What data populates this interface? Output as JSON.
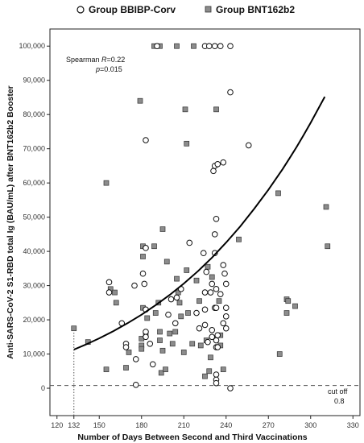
{
  "chart_data": {
    "type": "scatter",
    "xlabel": "Number of Days Between Second and Third Vaccinations",
    "ylabel": "Anti-SARS-CoV-2 S1-RBD total Ig (BAU/mL) after BNT162b2 Booster",
    "xlim": [
      115,
      335
    ],
    "ylim": [
      -8000,
      105000
    ],
    "x_ticks": [
      120,
      132,
      150,
      180,
      210,
      240,
      270,
      300,
      330
    ],
    "x_tick_labels": [
      "120",
      "132",
      "150",
      "180",
      "210",
      "240",
      "270",
      "300",
      "330"
    ],
    "y_ticks": [
      0,
      10000,
      20000,
      30000,
      40000,
      50000,
      60000,
      70000,
      80000,
      90000,
      100000
    ],
    "y_tick_labels": [
      "0",
      "10,000",
      "20,000",
      "30,000",
      "40,000",
      "50,000",
      "60,000",
      "70,000",
      "80,000",
      "90,000",
      "100,000"
    ],
    "legend": {
      "placement": "top"
    },
    "series": [
      {
        "name": "Group BBIBP-Corv",
        "marker": "open-circle",
        "color": "#111111",
        "points": [
          [
            157,
            31000
          ],
          [
            157,
            28000
          ],
          [
            166,
            19000
          ],
          [
            169,
            13000
          ],
          [
            169,
            12000
          ],
          [
            175,
            30000
          ],
          [
            176,
            8500
          ],
          [
            176,
            1000
          ],
          [
            181,
            33500
          ],
          [
            182,
            30500
          ],
          [
            183,
            72500
          ],
          [
            183,
            41000
          ],
          [
            183,
            23000
          ],
          [
            183,
            16500
          ],
          [
            183,
            15000
          ],
          [
            186,
            13000
          ],
          [
            188,
            7000
          ],
          [
            191,
            100000
          ],
          [
            199,
            21500
          ],
          [
            201,
            26000
          ],
          [
            204,
            19000
          ],
          [
            205,
            26500
          ],
          [
            208,
            29000
          ],
          [
            214,
            42500
          ],
          [
            219,
            22000
          ],
          [
            221,
            17500
          ],
          [
            224,
            39500
          ],
          [
            225,
            100000
          ],
          [
            225,
            28000
          ],
          [
            225,
            23000
          ],
          [
            225,
            18500
          ],
          [
            226,
            34000
          ],
          [
            227,
            13500
          ],
          [
            228,
            100000
          ],
          [
            229,
            28000
          ],
          [
            230,
            30500
          ],
          [
            230,
            17000
          ],
          [
            230,
            15000
          ],
          [
            231,
            63500
          ],
          [
            232,
            65000
          ],
          [
            232,
            100000
          ],
          [
            232,
            45000
          ],
          [
            232,
            39500
          ],
          [
            232,
            23500
          ],
          [
            233,
            49500
          ],
          [
            233,
            29000
          ],
          [
            233,
            23500
          ],
          [
            233,
            14000
          ],
          [
            233,
            12000
          ],
          [
            233,
            4000
          ],
          [
            233,
            2500
          ],
          [
            233,
            1500
          ],
          [
            234,
            65500
          ],
          [
            234,
            15500
          ],
          [
            234,
            12000
          ],
          [
            236,
            100000
          ],
          [
            236,
            27500
          ],
          [
            238,
            66000
          ],
          [
            238,
            36000
          ],
          [
            238,
            19000
          ],
          [
            239,
            33500
          ],
          [
            240,
            30500
          ],
          [
            240,
            23500
          ],
          [
            240,
            21000
          ],
          [
            240,
            17500
          ],
          [
            243,
            86500
          ],
          [
            243,
            100000
          ],
          [
            243,
            0
          ],
          [
            256,
            71000
          ]
        ]
      },
      {
        "name": "Group BNT162b2",
        "marker": "filled-square",
        "color": "#8c8c8c",
        "points": [
          [
            132,
            17500
          ],
          [
            142,
            13500
          ],
          [
            155,
            5500
          ],
          [
            155,
            60000
          ],
          [
            158,
            29000
          ],
          [
            161,
            28000
          ],
          [
            162,
            25000
          ],
          [
            169,
            6000
          ],
          [
            171,
            10500
          ],
          [
            179,
            84000
          ],
          [
            180,
            12500
          ],
          [
            180,
            14500
          ],
          [
            180,
            11500
          ],
          [
            181,
            23500
          ],
          [
            181,
            41500
          ],
          [
            181,
            38500
          ],
          [
            183,
            15500
          ],
          [
            184,
            20500
          ],
          [
            189,
            100000
          ],
          [
            189,
            41500
          ],
          [
            190,
            22000
          ],
          [
            192,
            25000
          ],
          [
            193,
            100000
          ],
          [
            193,
            16500
          ],
          [
            193,
            14000
          ],
          [
            194,
            4500
          ],
          [
            195,
            46500
          ],
          [
            195,
            11000
          ],
          [
            197,
            5500
          ],
          [
            198,
            37000
          ],
          [
            200,
            16000
          ],
          [
            202,
            13000
          ],
          [
            204,
            16500
          ],
          [
            205,
            100000
          ],
          [
            205,
            32000
          ],
          [
            206,
            28000
          ],
          [
            207,
            25000
          ],
          [
            208,
            21000
          ],
          [
            210,
            10500
          ],
          [
            211,
            81500
          ],
          [
            212,
            71500
          ],
          [
            212,
            34500
          ],
          [
            213,
            22000
          ],
          [
            216,
            13000
          ],
          [
            217,
            100000
          ],
          [
            219,
            31500
          ],
          [
            221,
            25500
          ],
          [
            222,
            12500
          ],
          [
            225,
            3500
          ],
          [
            226,
            14000
          ],
          [
            227,
            35500
          ],
          [
            228,
            5000
          ],
          [
            229,
            9000
          ],
          [
            230,
            32500
          ],
          [
            233,
            81500
          ],
          [
            235,
            25500
          ],
          [
            236,
            15500
          ],
          [
            236,
            12500
          ],
          [
            238,
            5500
          ],
          [
            249,
            43500
          ],
          [
            277,
            57000
          ],
          [
            278,
            10000
          ],
          [
            283,
            26000
          ],
          [
            283,
            22000
          ],
          [
            284,
            25500
          ],
          [
            289,
            24000
          ],
          [
            311,
            53000
          ],
          [
            312,
            41500
          ]
        ]
      }
    ],
    "fit_curve": {
      "points": [
        [
          132,
          11300
        ],
        [
          140,
          12700
        ],
        [
          150,
          14600
        ],
        [
          160,
          16700
        ],
        [
          170,
          19000
        ],
        [
          180,
          21500
        ],
        [
          190,
          24300
        ],
        [
          200,
          27300
        ],
        [
          210,
          30600
        ],
        [
          220,
          34200
        ],
        [
          230,
          38200
        ],
        [
          240,
          42600
        ],
        [
          250,
          47300
        ],
        [
          260,
          52500
        ],
        [
          270,
          58000
        ],
        [
          275,
          61000
        ],
        [
          280,
          64000
        ],
        [
          285,
          67200
        ],
        [
          290,
          70500
        ],
        [
          295,
          74000
        ],
        [
          300,
          77600
        ],
        [
          310,
          85200
        ]
      ]
    },
    "cutoff": {
      "y": 800,
      "label": "cut off",
      "value_label": "0.8"
    },
    "ref_line_x": 132,
    "annotation": {
      "line1_prefix": "Spearman ",
      "line1_var": "R",
      "line1_rest": "=0.22",
      "line2_var": "p",
      "line2_rest": "=0.015"
    }
  }
}
